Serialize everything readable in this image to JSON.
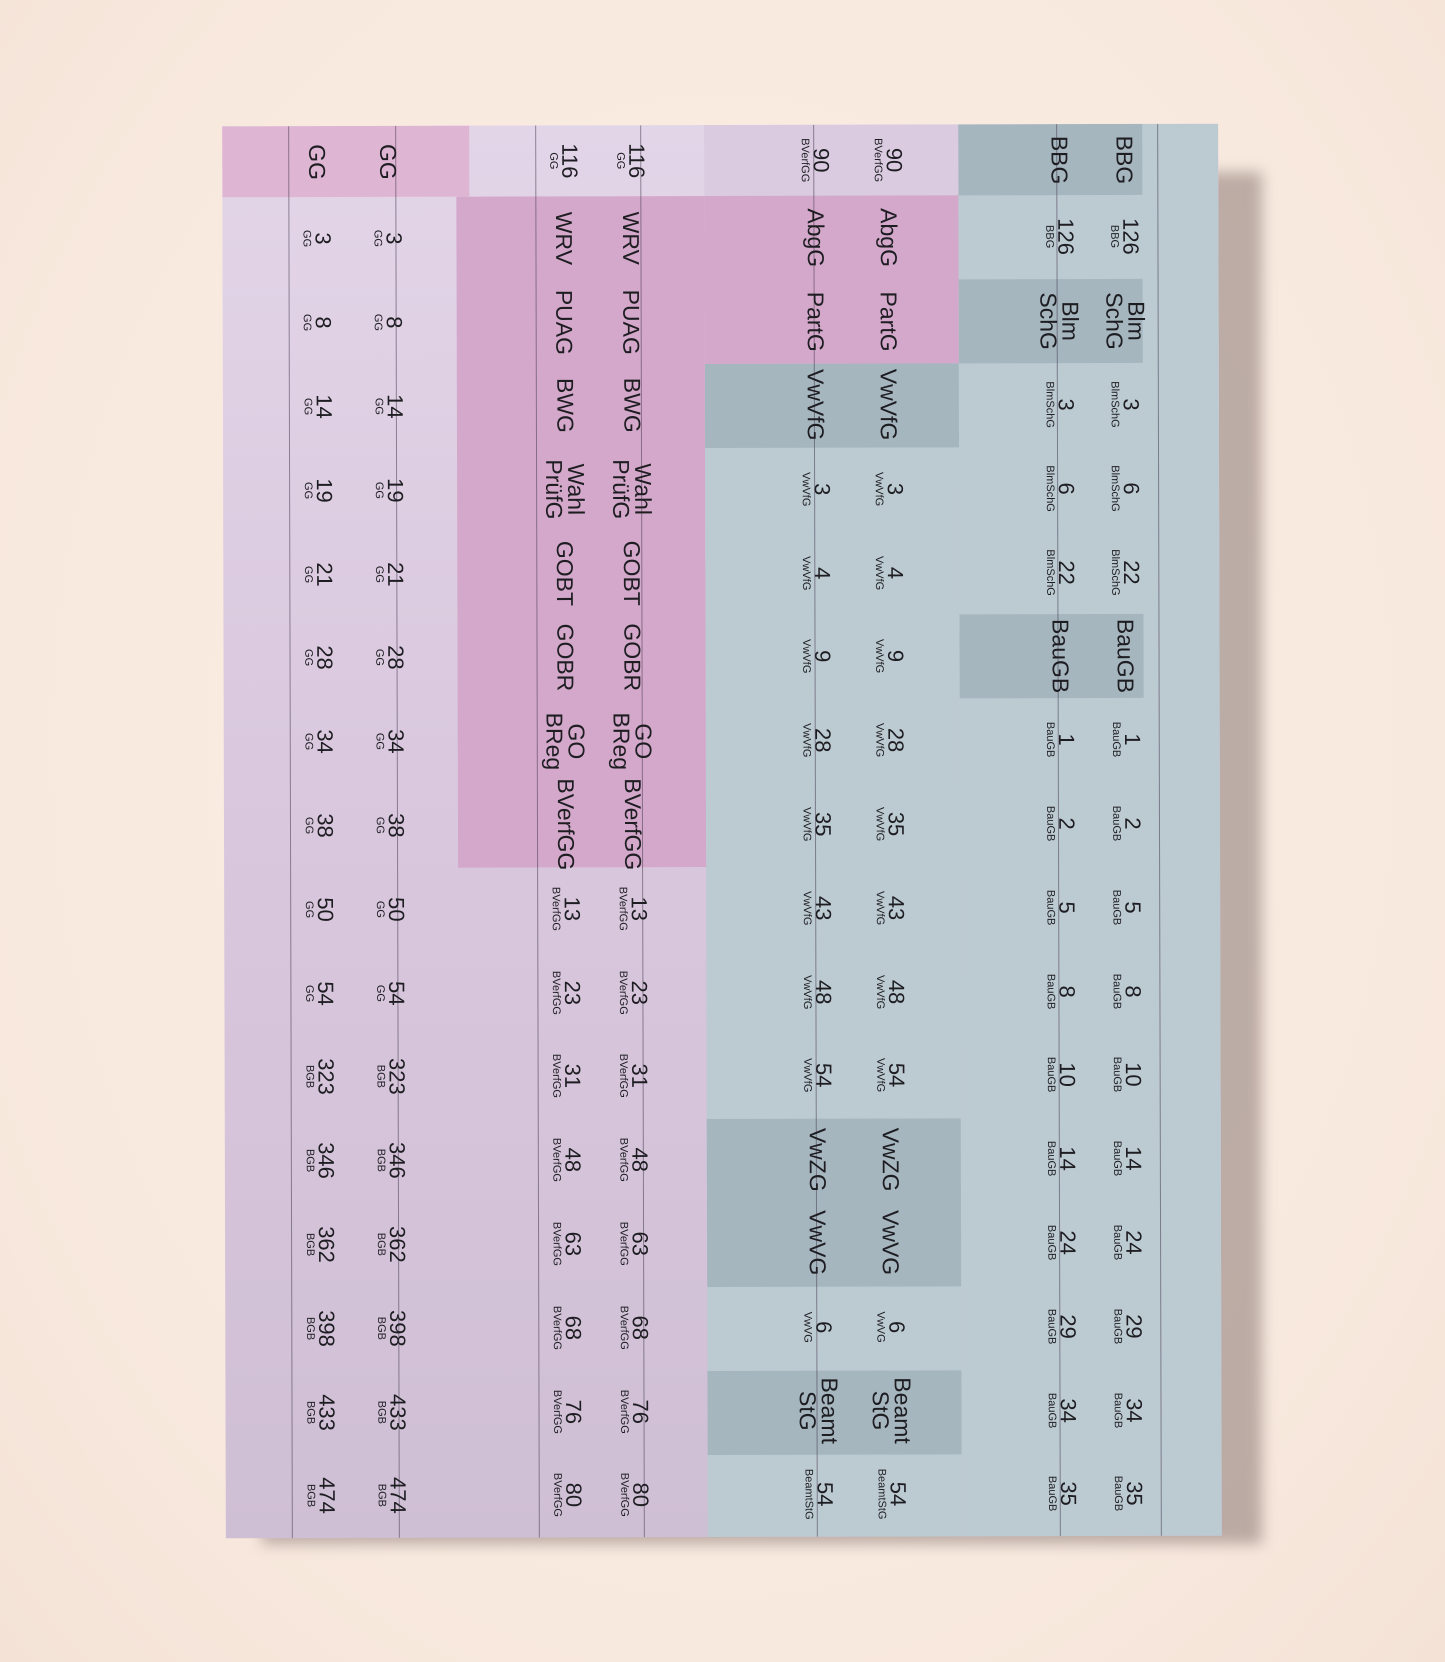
{
  "colors": {
    "background": "#f8e9de",
    "sheet_lavender": "#dacbe0",
    "pink_block": "#d4a8ca",
    "header_pink": "#dfb5d4",
    "header_lavender": "#dacbe0",
    "blue_block": "#bccad2",
    "dark_blue_block": "#a6b6bf",
    "text": "#1d1d22"
  },
  "columns": [
    {
      "id": "c0",
      "cells": [
        {
          "type": "title",
          "label": "BBG"
        },
        {
          "type": "ref",
          "num": "126",
          "law": "BBG"
        },
        {
          "type": "title",
          "label": "Blm\nSchG"
        },
        {
          "type": "ref",
          "num": "3",
          "law": "BlmSchG"
        },
        {
          "type": "ref",
          "num": "6",
          "law": "BlmSchG"
        },
        {
          "type": "ref",
          "num": "22",
          "law": "BlmSchG"
        },
        {
          "type": "title",
          "label": "BauGB"
        },
        {
          "type": "ref",
          "num": "1",
          "law": "BauGB"
        },
        {
          "type": "ref",
          "num": "2",
          "law": "BauGB"
        },
        {
          "type": "ref",
          "num": "5",
          "law": "BauGB"
        },
        {
          "type": "ref",
          "num": "8",
          "law": "BauGB"
        },
        {
          "type": "ref",
          "num": "10",
          "law": "BauGB"
        },
        {
          "type": "ref",
          "num": "14",
          "law": "BauGB"
        },
        {
          "type": "ref",
          "num": "24",
          "law": "BauGB"
        },
        {
          "type": "ref",
          "num": "29",
          "law": "BauGB"
        },
        {
          "type": "ref",
          "num": "34",
          "law": "BauGB"
        },
        {
          "type": "ref",
          "num": "35",
          "law": "BauGB"
        }
      ]
    },
    {
      "id": "c1",
      "cells": [
        {
          "type": "title",
          "label": "BBG"
        },
        {
          "type": "ref",
          "num": "126",
          "law": "BBG"
        },
        {
          "type": "title",
          "label": "Blm\nSchG"
        },
        {
          "type": "ref",
          "num": "3",
          "law": "BlmSchG"
        },
        {
          "type": "ref",
          "num": "6",
          "law": "BlmSchG"
        },
        {
          "type": "ref",
          "num": "22",
          "law": "BlmSchG"
        },
        {
          "type": "title",
          "label": "BauGB"
        },
        {
          "type": "ref",
          "num": "1",
          "law": "BauGB"
        },
        {
          "type": "ref",
          "num": "2",
          "law": "BauGB"
        },
        {
          "type": "ref",
          "num": "5",
          "law": "BauGB"
        },
        {
          "type": "ref",
          "num": "8",
          "law": "BauGB"
        },
        {
          "type": "ref",
          "num": "10",
          "law": "BauGB"
        },
        {
          "type": "ref",
          "num": "14",
          "law": "BauGB"
        },
        {
          "type": "ref",
          "num": "24",
          "law": "BauGB"
        },
        {
          "type": "ref",
          "num": "29",
          "law": "BauGB"
        },
        {
          "type": "ref",
          "num": "34",
          "law": "BauGB"
        },
        {
          "type": "ref",
          "num": "35",
          "law": "BauGB"
        }
      ]
    },
    {
      "id": "c2",
      "cells": [
        {
          "type": "ref",
          "num": "90",
          "law": "BVerfGG"
        },
        {
          "type": "title",
          "label": "AbgG"
        },
        {
          "type": "title",
          "label": "PartG"
        },
        {
          "type": "title",
          "label": "VwVfG"
        },
        {
          "type": "ref",
          "num": "3",
          "law": "VwVfG"
        },
        {
          "type": "ref",
          "num": "4",
          "law": "VwVfG"
        },
        {
          "type": "ref",
          "num": "9",
          "law": "VwVfG"
        },
        {
          "type": "ref",
          "num": "28",
          "law": "VwVfG"
        },
        {
          "type": "ref",
          "num": "35",
          "law": "VwVfG"
        },
        {
          "type": "ref",
          "num": "43",
          "law": "VwVfG"
        },
        {
          "type": "ref",
          "num": "48",
          "law": "VwVfG"
        },
        {
          "type": "ref",
          "num": "54",
          "law": "VwVfG"
        },
        {
          "type": "title",
          "label": "VwZG"
        },
        {
          "type": "title",
          "label": "VwVG"
        },
        {
          "type": "ref",
          "num": "6",
          "law": "VwVG"
        },
        {
          "type": "title",
          "label": "Beamt\nStG"
        },
        {
          "type": "ref",
          "num": "54",
          "law": "BeamtStG"
        }
      ]
    },
    {
      "id": "c3",
      "cells": [
        {
          "type": "ref",
          "num": "90",
          "law": "BVerfGG"
        },
        {
          "type": "title",
          "label": "AbgG"
        },
        {
          "type": "title",
          "label": "PartG"
        },
        {
          "type": "title",
          "label": "VwVfG"
        },
        {
          "type": "ref",
          "num": "3",
          "law": "VwVfG"
        },
        {
          "type": "ref",
          "num": "4",
          "law": "VwVfG"
        },
        {
          "type": "ref",
          "num": "9",
          "law": "VwVfG"
        },
        {
          "type": "ref",
          "num": "28",
          "law": "VwVfG"
        },
        {
          "type": "ref",
          "num": "35",
          "law": "VwVfG"
        },
        {
          "type": "ref",
          "num": "43",
          "law": "VwVfG"
        },
        {
          "type": "ref",
          "num": "48",
          "law": "VwVfG"
        },
        {
          "type": "ref",
          "num": "54",
          "law": "VwVfG"
        },
        {
          "type": "title",
          "label": "VwZG"
        },
        {
          "type": "title",
          "label": "VwVG"
        },
        {
          "type": "ref",
          "num": "6",
          "law": "VwVG"
        },
        {
          "type": "title",
          "label": "Beamt\nStG"
        },
        {
          "type": "ref",
          "num": "54",
          "law": "BeamtStG"
        }
      ]
    },
    {
      "id": "c4",
      "cells": [
        {
          "type": "ref",
          "num": "116",
          "law": "GG"
        },
        {
          "type": "title",
          "label": "WRV"
        },
        {
          "type": "title",
          "label": "PUAG"
        },
        {
          "type": "title",
          "label": "BWG"
        },
        {
          "type": "title",
          "label": "Wahl\nPrüfG"
        },
        {
          "type": "title",
          "label": "GOBT"
        },
        {
          "type": "title",
          "label": "GOBR"
        },
        {
          "type": "title",
          "label": "GO\nBReg"
        },
        {
          "type": "title",
          "label": "BVerfGG"
        },
        {
          "type": "ref",
          "num": "13",
          "law": "BVerfGG"
        },
        {
          "type": "ref",
          "num": "23",
          "law": "BVerfGG"
        },
        {
          "type": "ref",
          "num": "31",
          "law": "BVerfGG"
        },
        {
          "type": "ref",
          "num": "48",
          "law": "BVerfGG"
        },
        {
          "type": "ref",
          "num": "63",
          "law": "BVerfGG"
        },
        {
          "type": "ref",
          "num": "68",
          "law": "BVerfGG"
        },
        {
          "type": "ref",
          "num": "76",
          "law": "BVerfGG"
        },
        {
          "type": "ref",
          "num": "80",
          "law": "BVerfGG"
        }
      ]
    },
    {
      "id": "c5",
      "cells": [
        {
          "type": "ref",
          "num": "116",
          "law": "GG"
        },
        {
          "type": "title",
          "label": "WRV"
        },
        {
          "type": "title",
          "label": "PUAG"
        },
        {
          "type": "title",
          "label": "BWG"
        },
        {
          "type": "title",
          "label": "Wahl\nPrüfG"
        },
        {
          "type": "title",
          "label": "GOBT"
        },
        {
          "type": "title",
          "label": "GOBR"
        },
        {
          "type": "title",
          "label": "GO\nBReg"
        },
        {
          "type": "title",
          "label": "BVerfGG"
        },
        {
          "type": "ref",
          "num": "13",
          "law": "BVerfGG"
        },
        {
          "type": "ref",
          "num": "23",
          "law": "BVerfGG"
        },
        {
          "type": "ref",
          "num": "31",
          "law": "BVerfGG"
        },
        {
          "type": "ref",
          "num": "48",
          "law": "BVerfGG"
        },
        {
          "type": "ref",
          "num": "63",
          "law": "BVerfGG"
        },
        {
          "type": "ref",
          "num": "68",
          "law": "BVerfGG"
        },
        {
          "type": "ref",
          "num": "76",
          "law": "BVerfGG"
        },
        {
          "type": "ref",
          "num": "80",
          "law": "BVerfGG"
        }
      ]
    },
    {
      "id": "c6",
      "cells": [
        {
          "type": "title",
          "label": "GG"
        },
        {
          "type": "ref",
          "num": "3",
          "law": "GG"
        },
        {
          "type": "ref",
          "num": "8",
          "law": "GG"
        },
        {
          "type": "ref",
          "num": "14",
          "law": "GG"
        },
        {
          "type": "ref",
          "num": "19",
          "law": "GG"
        },
        {
          "type": "ref",
          "num": "21",
          "law": "GG"
        },
        {
          "type": "ref",
          "num": "28",
          "law": "GG"
        },
        {
          "type": "ref",
          "num": "34",
          "law": "GG"
        },
        {
          "type": "ref",
          "num": "38",
          "law": "GG"
        },
        {
          "type": "ref",
          "num": "50",
          "law": "GG"
        },
        {
          "type": "ref",
          "num": "54",
          "law": "GG"
        },
        {
          "type": "ref",
          "num": "323",
          "law": "BGB"
        },
        {
          "type": "ref",
          "num": "346",
          "law": "BGB"
        },
        {
          "type": "ref",
          "num": "362",
          "law": "BGB"
        },
        {
          "type": "ref",
          "num": "398",
          "law": "BGB"
        },
        {
          "type": "ref",
          "num": "433",
          "law": "BGB"
        },
        {
          "type": "ref",
          "num": "474",
          "law": "BGB"
        }
      ]
    },
    {
      "id": "c7",
      "cells": [
        {
          "type": "title",
          "label": "GG"
        },
        {
          "type": "ref",
          "num": "3",
          "law": "GG"
        },
        {
          "type": "ref",
          "num": "8",
          "law": "GG"
        },
        {
          "type": "ref",
          "num": "14",
          "law": "GG"
        },
        {
          "type": "ref",
          "num": "19",
          "law": "GG"
        },
        {
          "type": "ref",
          "num": "21",
          "law": "GG"
        },
        {
          "type": "ref",
          "num": "28",
          "law": "GG"
        },
        {
          "type": "ref",
          "num": "34",
          "law": "GG"
        },
        {
          "type": "ref",
          "num": "38",
          "law": "GG"
        },
        {
          "type": "ref",
          "num": "50",
          "law": "GG"
        },
        {
          "type": "ref",
          "num": "54",
          "law": "GG"
        },
        {
          "type": "ref",
          "num": "323",
          "law": "BGB"
        },
        {
          "type": "ref",
          "num": "346",
          "law": "BGB"
        },
        {
          "type": "ref",
          "num": "362",
          "law": "BGB"
        },
        {
          "type": "ref",
          "num": "398",
          "law": "BGB"
        },
        {
          "type": "ref",
          "num": "433",
          "law": "BGB"
        },
        {
          "type": "ref",
          "num": "474",
          "law": "BGB"
        }
      ]
    }
  ]
}
